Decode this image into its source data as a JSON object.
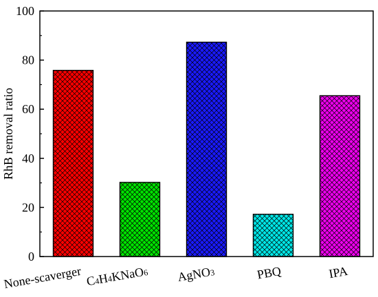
{
  "chart_data": {
    "type": "bar",
    "title": "",
    "xlabel": "",
    "ylabel": "RhB  removal ratio",
    "ylim": [
      0,
      100
    ],
    "yticks": [
      "0",
      "20",
      "40",
      "60",
      "80",
      "100"
    ],
    "grid": false,
    "legend": "none",
    "categories": [
      {
        "text": "None-scaverger"
      },
      {
        "parts": [
          [
            "C",
            ""
          ],
          [
            "4",
            "sub"
          ],
          [
            "H",
            ""
          ],
          [
            "4",
            "sub"
          ],
          [
            "KNaO",
            ""
          ],
          [
            "6",
            "sub"
          ]
        ]
      },
      {
        "parts": [
          [
            "AgNO",
            ""
          ],
          [
            "3",
            "sub"
          ]
        ]
      },
      {
        "text": "PBQ"
      },
      {
        "text": "IPA"
      }
    ],
    "series": [
      {
        "values": [
          75.8,
          30.2,
          87.3,
          17.2,
          65.5
        ],
        "colors": [
          "#ff0000",
          "#00e400",
          "#1a1aff",
          "#00e8e8",
          "#ee00ee"
        ]
      }
    ]
  }
}
